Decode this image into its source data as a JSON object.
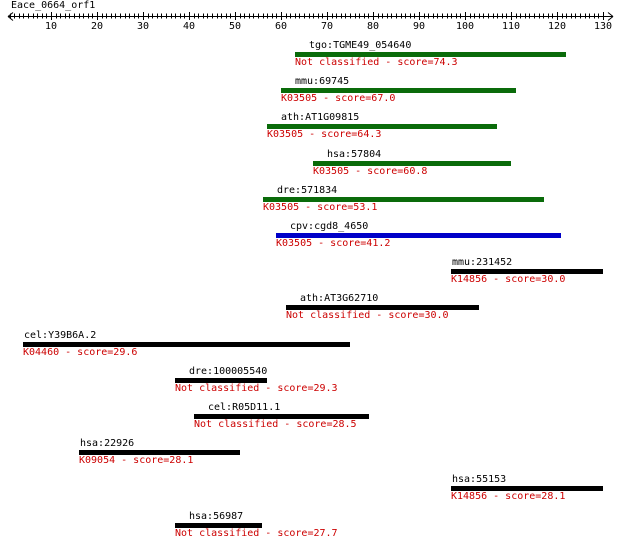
{
  "query": {
    "title": "Eace_0664_orf1",
    "length": 130
  },
  "ruler": {
    "ticks": [
      10,
      20,
      30,
      40,
      50,
      60,
      70,
      80,
      90,
      100,
      110,
      120,
      130
    ]
  },
  "colors": {
    "green": "#0a6b0a",
    "blue": "#0000c8",
    "black": "#000000",
    "score_text": "#cc0000"
  },
  "hits": [
    {
      "name": "tgo:TGME49_054640",
      "score_label": "Not classified - score=74.3",
      "color": "green",
      "start": 63,
      "end": 122
    },
    {
      "name": "mmu:69745",
      "score_label": "K03505 - score=67.0",
      "color": "green",
      "start": 60,
      "end": 111
    },
    {
      "name": "ath:AT1G09815",
      "score_label": "K03505 - score=64.3",
      "color": "green",
      "start": 57,
      "end": 107
    },
    {
      "name": "hsa:57804",
      "score_label": "K03505 - score=60.8",
      "color": "green",
      "start": 67,
      "end": 110
    },
    {
      "name": "dre:571834",
      "score_label": "K03505 - score=53.1",
      "color": "green",
      "start": 56,
      "end": 117
    },
    {
      "name": "cpv:cgd8_4650",
      "score_label": "K03505 - score=41.2",
      "color": "blue",
      "start": 59,
      "end": 121
    },
    {
      "name": "mmu:231452",
      "score_label": "K14856 - score=30.0",
      "color": "black",
      "start": 97,
      "end": 130
    },
    {
      "name": "ath:AT3G62710",
      "score_label": "Not classified - score=30.0",
      "color": "black",
      "start": 61,
      "end": 103
    },
    {
      "name": "cel:Y39B6A.2",
      "score_label": "K04460 - score=29.6",
      "color": "black",
      "start": 4,
      "end": 75
    },
    {
      "name": "dre:100005540",
      "score_label": "Not classified - score=29.3",
      "color": "black",
      "start": 37,
      "end": 57
    },
    {
      "name": "cel:R05D11.1",
      "score_label": "Not classified - score=28.5",
      "color": "black",
      "start": 41,
      "end": 79
    },
    {
      "name": "hsa:22926",
      "score_label": "K09054 - score=28.1",
      "color": "black",
      "start": 16,
      "end": 51
    },
    {
      "name": "hsa:55153",
      "score_label": "K14856 - score=28.1",
      "color": "black",
      "start": 97,
      "end": 130
    },
    {
      "name": "hsa:56987",
      "score_label": "Not classified - score=27.7",
      "color": "black",
      "start": 37,
      "end": 56
    }
  ]
}
